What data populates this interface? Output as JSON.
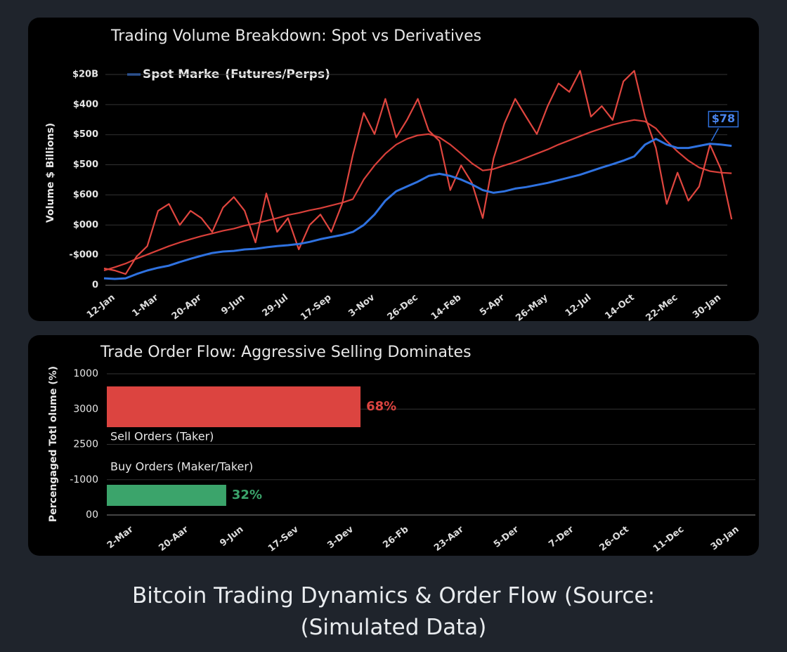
{
  "chart_data": [
    {
      "type": "line",
      "title": "Trading Volume Breakdown: Spot vs Derivatives",
      "ylabel": "Volume $ Billions)",
      "annotation": "$78",
      "categories": [
        "12-Jan",
        null,
        null,
        null,
        "1-Mar",
        null,
        null,
        null,
        "20-Apr",
        null,
        null,
        null,
        "9-Jun",
        null,
        null,
        null,
        "29-Jul",
        null,
        null,
        null,
        "17-Sep",
        null,
        null,
        null,
        "3-Nov",
        null,
        null,
        null,
        "26-Dec",
        null,
        null,
        null,
        "14-Feb",
        null,
        null,
        null,
        "5-Apr",
        null,
        null,
        null,
        "26-May",
        null,
        null,
        null,
        "12-Jul",
        null,
        null,
        null,
        "14-Oct",
        null,
        null,
        null,
        "22-Mec",
        null,
        null,
        null,
        "30-Jan",
        null,
        null
      ],
      "series": [
        {
          "name": "Spot Marke",
          "color": "#2f72e0",
          "values": [
            0.23,
            0.21,
            0.23,
            0.37,
            0.49,
            0.58,
            0.65,
            0.77,
            0.88,
            0.98,
            1.07,
            1.12,
            1.14,
            1.19,
            1.21,
            1.26,
            1.3,
            1.33,
            1.37,
            1.44,
            1.53,
            1.6,
            1.67,
            1.77,
            2.0,
            2.35,
            2.81,
            3.12,
            3.28,
            3.44,
            3.63,
            3.7,
            3.63,
            3.51,
            3.35,
            3.16,
            3.07,
            3.12,
            3.21,
            3.26,
            3.33,
            3.4,
            3.49,
            3.58,
            3.67,
            3.79,
            3.91,
            4.02,
            4.14,
            4.28,
            4.67,
            4.86,
            4.67,
            4.56,
            4.56,
            4.63,
            4.7,
            4.67,
            4.63
          ]
        },
        {
          "name": "(Futures/Perps)",
          "color": "#e0463f",
          "values": [
            0.56,
            0.49,
            0.37,
            0.95,
            1.3,
            2.47,
            2.7,
            2.0,
            2.47,
            2.23,
            1.77,
            2.58,
            2.93,
            2.47,
            1.42,
            3.05,
            1.77,
            2.23,
            1.19,
            2.0,
            2.35,
            1.77,
            2.7,
            4.33,
            5.72,
            5.02,
            6.19,
            4.91,
            5.49,
            6.19,
            5.14,
            4.79,
            3.16,
            3.98,
            3.4,
            2.23,
            4.21,
            5.37,
            6.19,
            5.6,
            5.02,
            5.95,
            6.7,
            6.42,
            7.12,
            5.6,
            5.95,
            5.49,
            6.77,
            7.12,
            5.6,
            4.56,
            2.7,
            3.74,
            2.81,
            3.28,
            4.67,
            3.86,
            2.19
          ]
        },
        {
          "color": "#d9403a",
          "values": [
            0.49,
            0.6,
            0.72,
            0.88,
            1.02,
            1.16,
            1.3,
            1.42,
            1.53,
            1.63,
            1.72,
            1.81,
            1.88,
            1.98,
            2.05,
            2.14,
            2.23,
            2.33,
            2.4,
            2.49,
            2.56,
            2.65,
            2.74,
            2.86,
            3.51,
            3.98,
            4.37,
            4.67,
            4.86,
            4.98,
            5.02,
            4.91,
            4.67,
            4.37,
            4.05,
            3.81,
            3.86,
            3.98,
            4.09,
            4.23,
            4.37,
            4.51,
            4.67,
            4.81,
            4.95,
            5.09,
            5.21,
            5.33,
            5.42,
            5.49,
            5.44,
            5.21,
            4.79,
            4.44,
            4.14,
            3.91,
            3.79,
            3.74,
            3.72
          ]
        }
      ],
      "ylim": [
        0,
        7.3
      ],
      "yticks": [
        0,
        {
          "value": 1,
          "label": "-$000"
        },
        {
          "value": 2,
          "label": "$000"
        },
        {
          "value": 3,
          "label": "$600"
        },
        {
          "value": 4,
          "label": "$500"
        },
        {
          "value": 5,
          "label": "$500"
        },
        {
          "value": 6,
          "label": "$400"
        },
        {
          "value": 7,
          "label": "$20B"
        }
      ],
      "grid": true
    },
    {
      "type": "hbar",
      "title": "Trade Order Flow: Aggressive Selling Dominates",
      "ylabel": "Percengaged Totl olume (%)",
      "categories": [
        "Sell Orders (Taker)",
        "Buy Orders (Maker/Taker)"
      ],
      "values": [
        68,
        32
      ],
      "value_labels": [
        "68%",
        "32%"
      ],
      "colors": [
        "#dc4440",
        "#3ba46b"
      ],
      "xlim": [
        0,
        100
      ],
      "x_labels": [
        "2-Mar",
        "20-Aar",
        "9-Jun",
        "17-Sev",
        "3-Dev",
        "26-Fb",
        "23-Aar",
        "5-Der",
        "7-Der",
        "26-Oct",
        "11-Dec",
        "30-Jan"
      ],
      "ylim": [
        0,
        4
      ],
      "yticks": [
        {
          "value": 0,
          "label": "00"
        },
        {
          "value": 1,
          "label": "-1000"
        },
        {
          "value": 2,
          "label": "2500"
        },
        {
          "value": 3,
          "label": "3000"
        },
        {
          "value": 4,
          "label": "1000"
        }
      ],
      "grid": true
    }
  ],
  "caption": "Bitcoin Trading Dynamics & Order Flow (Source: (Simulated Data)"
}
